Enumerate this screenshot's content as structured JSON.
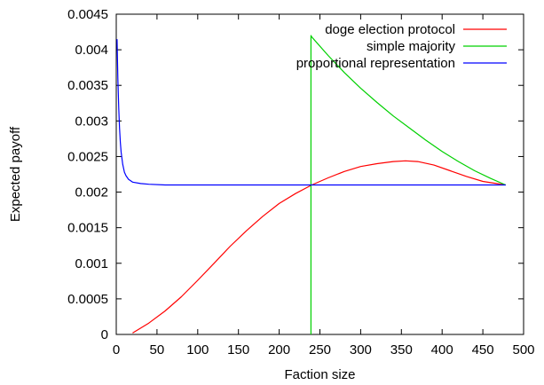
{
  "chart_data": {
    "type": "line",
    "title": "",
    "xlabel": "Faction size",
    "ylabel": "Expected payoff",
    "xlim": [
      0,
      500
    ],
    "ylim": [
      0,
      0.0045
    ],
    "xticks": [
      "0",
      "50",
      "100",
      "150",
      "200",
      "250",
      "300",
      "350",
      "400",
      "450",
      "500"
    ],
    "yticks": [
      "0",
      "0.0005",
      "0.001",
      "0.0015",
      "0.002",
      "0.0025",
      "0.003",
      "0.0035",
      "0.004",
      "0.0045"
    ],
    "grid": false,
    "legend_position": "top-right",
    "series": [
      {
        "name": "doge election protocol",
        "color": "#ff0000",
        "x": [
          20,
          40,
          60,
          80,
          100,
          120,
          140,
          160,
          180,
          200,
          220,
          240,
          260,
          280,
          300,
          320,
          340,
          355,
          370,
          390,
          410,
          430,
          450,
          478
        ],
        "y": [
          2e-05,
          0.00016,
          0.00033,
          0.00053,
          0.00076,
          0.001,
          0.00124,
          0.00146,
          0.00166,
          0.00184,
          0.00198,
          0.0021,
          0.0022,
          0.00229,
          0.00236,
          0.0024,
          0.00243,
          0.00244,
          0.00243,
          0.00238,
          0.0023,
          0.00222,
          0.00215,
          0.0021
        ]
      },
      {
        "name": "simple majority",
        "color": "#00d000",
        "x": [
          239,
          239,
          240,
          260,
          280,
          300,
          320,
          340,
          360,
          380,
          400,
          420,
          440,
          460,
          478
        ],
        "y": [
          0,
          0.0042,
          0.00418,
          0.00392,
          0.00368,
          0.00346,
          0.00326,
          0.00307,
          0.0029,
          0.00273,
          0.00257,
          0.00243,
          0.0023,
          0.00219,
          0.0021
        ]
      },
      {
        "name": "proportional representation",
        "color": "#0000ff",
        "x": [
          1,
          2,
          3,
          4,
          5,
          6,
          8,
          10,
          12,
          15,
          20,
          30,
          40,
          60,
          80,
          100,
          150,
          200,
          250,
          300,
          350,
          400,
          450,
          478
        ],
        "y": [
          0.00415,
          0.0036,
          0.00318,
          0.0029,
          0.0027,
          0.00256,
          0.00239,
          0.00228,
          0.00223,
          0.00218,
          0.00214,
          0.00212,
          0.00211,
          0.0021,
          0.0021,
          0.0021,
          0.0021,
          0.0021,
          0.0021,
          0.0021,
          0.0021,
          0.0021,
          0.0021,
          0.0021
        ]
      }
    ]
  }
}
